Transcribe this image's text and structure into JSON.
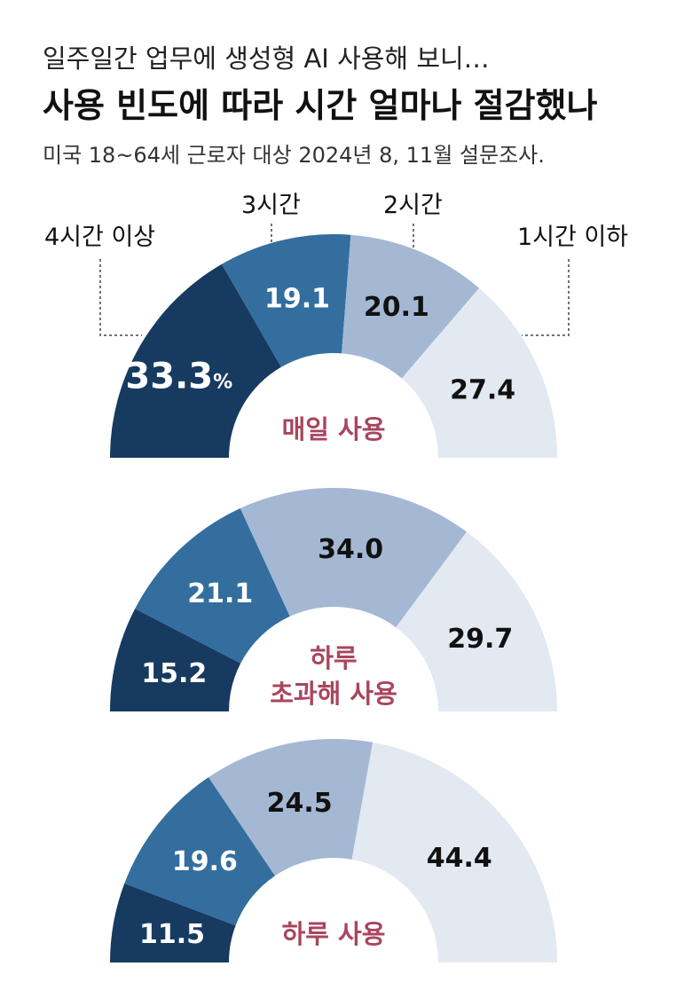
{
  "header": {
    "subtitle": "일주일간 업무에 생성형 AI 사용해 보니…",
    "title": "사용 빈도에 따라 시간 얼마나 절감했나",
    "note": "미국 18~64세 근로자 대상 2024년 8, 11월 설문조사."
  },
  "colors": {
    "segments": [
      "#173a61",
      "#336e9f",
      "#a4b8d4",
      "#e2e9f1"
    ],
    "center_label": "#a8465e",
    "value_dark": "#ffffff",
    "value_light": "#111111"
  },
  "chart_data": {
    "type": "pie",
    "categories": [
      "4시간 이상",
      "3시간",
      "2시간",
      "1시간 이하"
    ],
    "unit": "%",
    "charts": [
      {
        "name": "매일 사용",
        "values": [
          33.3,
          19.1,
          20.1,
          27.4
        ],
        "labels": [
          "33.3",
          "19.1",
          "20.1",
          "27.4"
        ]
      },
      {
        "name_lines": [
          "하루",
          "초과해 사용"
        ],
        "values": [
          15.2,
          21.1,
          34.0,
          29.7
        ],
        "labels": [
          "15.2",
          "21.1",
          "34.0",
          "29.7"
        ]
      },
      {
        "name": "하루 사용",
        "values": [
          11.5,
          19.6,
          24.5,
          44.4
        ],
        "labels": [
          "11.5",
          "19.6",
          "24.5",
          "44.4"
        ]
      }
    ]
  }
}
